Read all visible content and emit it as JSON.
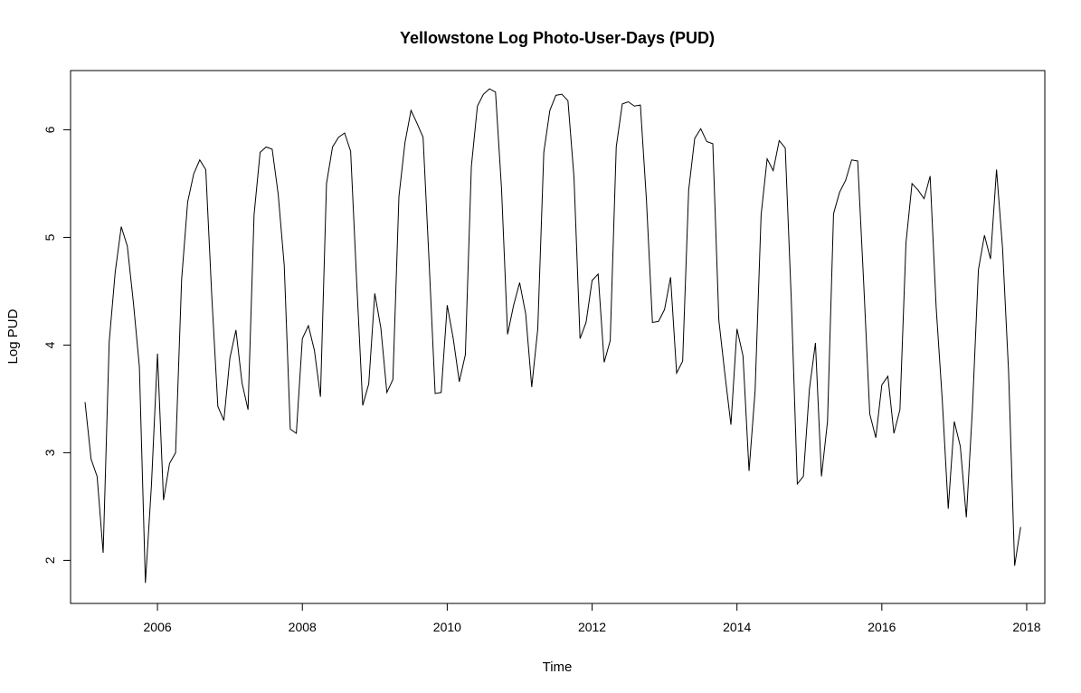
{
  "chart_data": {
    "type": "line",
    "title": "Yellowstone Log Photo-User-Days (PUD)",
    "xlabel": "Time",
    "ylabel": "Log PUD",
    "xlim": [
      2004.8,
      2018.25
    ],
    "ylim": [
      1.6,
      6.55
    ],
    "x_ticks": [
      2006,
      2008,
      2010,
      2012,
      2014,
      2016,
      2018
    ],
    "x_tick_labels": [
      "2006",
      "2008",
      "2010",
      "2012",
      "2014",
      "2016",
      "2018"
    ],
    "y_ticks": [
      2,
      3,
      4,
      5,
      6
    ],
    "y_tick_labels": [
      "2",
      "3",
      "4",
      "5",
      "6"
    ],
    "grid": false,
    "legend": "none",
    "line_color": "#000000",
    "series": [
      {
        "start": 2005.0,
        "frequency": 12,
        "values": [
          3.47,
          2.94,
          2.78,
          2.07,
          4.03,
          4.68,
          5.1,
          4.92,
          4.4,
          3.8,
          1.79,
          2.7,
          3.92,
          2.56,
          2.9,
          3.0,
          4.61,
          5.33,
          5.59,
          5.72,
          5.63,
          4.45,
          3.43,
          3.3,
          3.88,
          4.14,
          3.65,
          3.4,
          5.21,
          5.79,
          5.84,
          5.82,
          5.4,
          4.74,
          3.22,
          3.18,
          4.06,
          4.18,
          3.95,
          3.52,
          5.5,
          5.84,
          5.93,
          5.97,
          5.8,
          4.59,
          3.44,
          3.64,
          4.48,
          4.16,
          3.56,
          3.68,
          5.38,
          5.88,
          6.18,
          6.06,
          5.93,
          4.77,
          3.55,
          3.56,
          4.37,
          4.06,
          3.66,
          3.91,
          5.66,
          6.22,
          6.33,
          6.38,
          6.35,
          5.45,
          4.1,
          4.37,
          4.58,
          4.29,
          3.61,
          4.15,
          5.79,
          6.18,
          6.32,
          6.33,
          6.27,
          5.56,
          4.06,
          4.21,
          4.6,
          4.66,
          3.84,
          4.04,
          5.84,
          6.24,
          6.26,
          6.22,
          6.23,
          5.35,
          4.21,
          4.22,
          4.33,
          4.63,
          3.74,
          3.85,
          5.44,
          5.92,
          6.01,
          5.89,
          5.87,
          4.23,
          3.73,
          3.26,
          4.15,
          3.9,
          2.83,
          3.57,
          5.21,
          5.73,
          5.62,
          5.9,
          5.83,
          4.42,
          2.71,
          2.78,
          3.59,
          4.02,
          2.78,
          3.29,
          5.22,
          5.42,
          5.53,
          5.72,
          5.71,
          4.57,
          3.36,
          3.14,
          3.63,
          3.71,
          3.18,
          3.4,
          4.95,
          5.5,
          5.44,
          5.36,
          5.57,
          4.35,
          3.5,
          2.48,
          3.29,
          3.06,
          2.4,
          3.4,
          4.7,
          5.02,
          4.8,
          5.63,
          4.9,
          3.75,
          1.95,
          2.31
        ]
      }
    ]
  }
}
